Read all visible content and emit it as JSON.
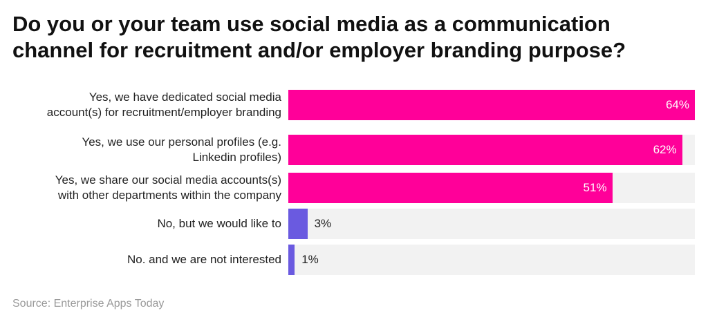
{
  "chart_data": {
    "type": "hbar",
    "title": "Do you or your team use social media as a communication channel for recruitment and/or employer branding purpose?",
    "categories": [
      "Yes, we have dedicated social media account(s) for recruitment/employer branding",
      "Yes, we use our personal profiles (e.g. Linkedin profiles)",
      "Yes, we share our social media accounts(s) with other departments within the company",
      "No, but we would like to",
      "No. and we are not interested"
    ],
    "values": [
      64,
      62,
      51,
      3,
      1
    ],
    "value_labels": [
      "64%",
      "62%",
      "51%",
      "3%",
      "1%"
    ],
    "colors": [
      "#ff0099",
      "#ff0099",
      "#ff0099",
      "#6a5ae0",
      "#6a5ae0"
    ],
    "track_color": "#f2f2f2",
    "xlim": [
      0,
      64
    ],
    "source": "Source: Enterprise Apps Today"
  }
}
